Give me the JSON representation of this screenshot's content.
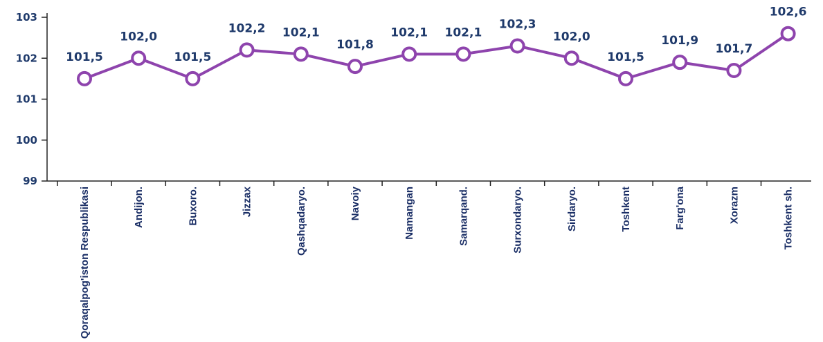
{
  "colors": {
    "line": "#8e44ad",
    "marker_fill": "#ffffff",
    "axis": "#222222",
    "text": "#1f3a6b"
  },
  "chart_data": {
    "type": "line",
    "categories": [
      "Qoraqalpog'iston Respublikasi",
      "Andijon.",
      "Buxoro.",
      "Jizzax",
      "Qashqadaryo.",
      "Navoiy",
      "Namangan",
      "Samarqand.",
      "Surxondaryo.",
      "Sirdaryo.",
      "Toshkent",
      "Farg'ona",
      "Xorazm",
      "Toshkent sh."
    ],
    "values": [
      101.5,
      102.0,
      101.5,
      102.2,
      102.1,
      101.8,
      102.1,
      102.1,
      102.3,
      102.0,
      101.5,
      101.9,
      101.7,
      102.6
    ],
    "data_labels": [
      "101,5",
      "102,0",
      "101,5",
      "102,2",
      "102,1",
      "101,8",
      "102,1",
      "102,1",
      "102,3",
      "102,0",
      "101,5",
      "101,9",
      "101,7",
      "102,6"
    ],
    "y_ticks": [
      99,
      100,
      101,
      102,
      103
    ],
    "y_tick_labels": [
      "99",
      "100",
      "101",
      "102",
      "103"
    ],
    "ylim": [
      99,
      103
    ],
    "grid": false,
    "legend": "none",
    "title": "",
    "xlabel": "",
    "ylabel": ""
  }
}
